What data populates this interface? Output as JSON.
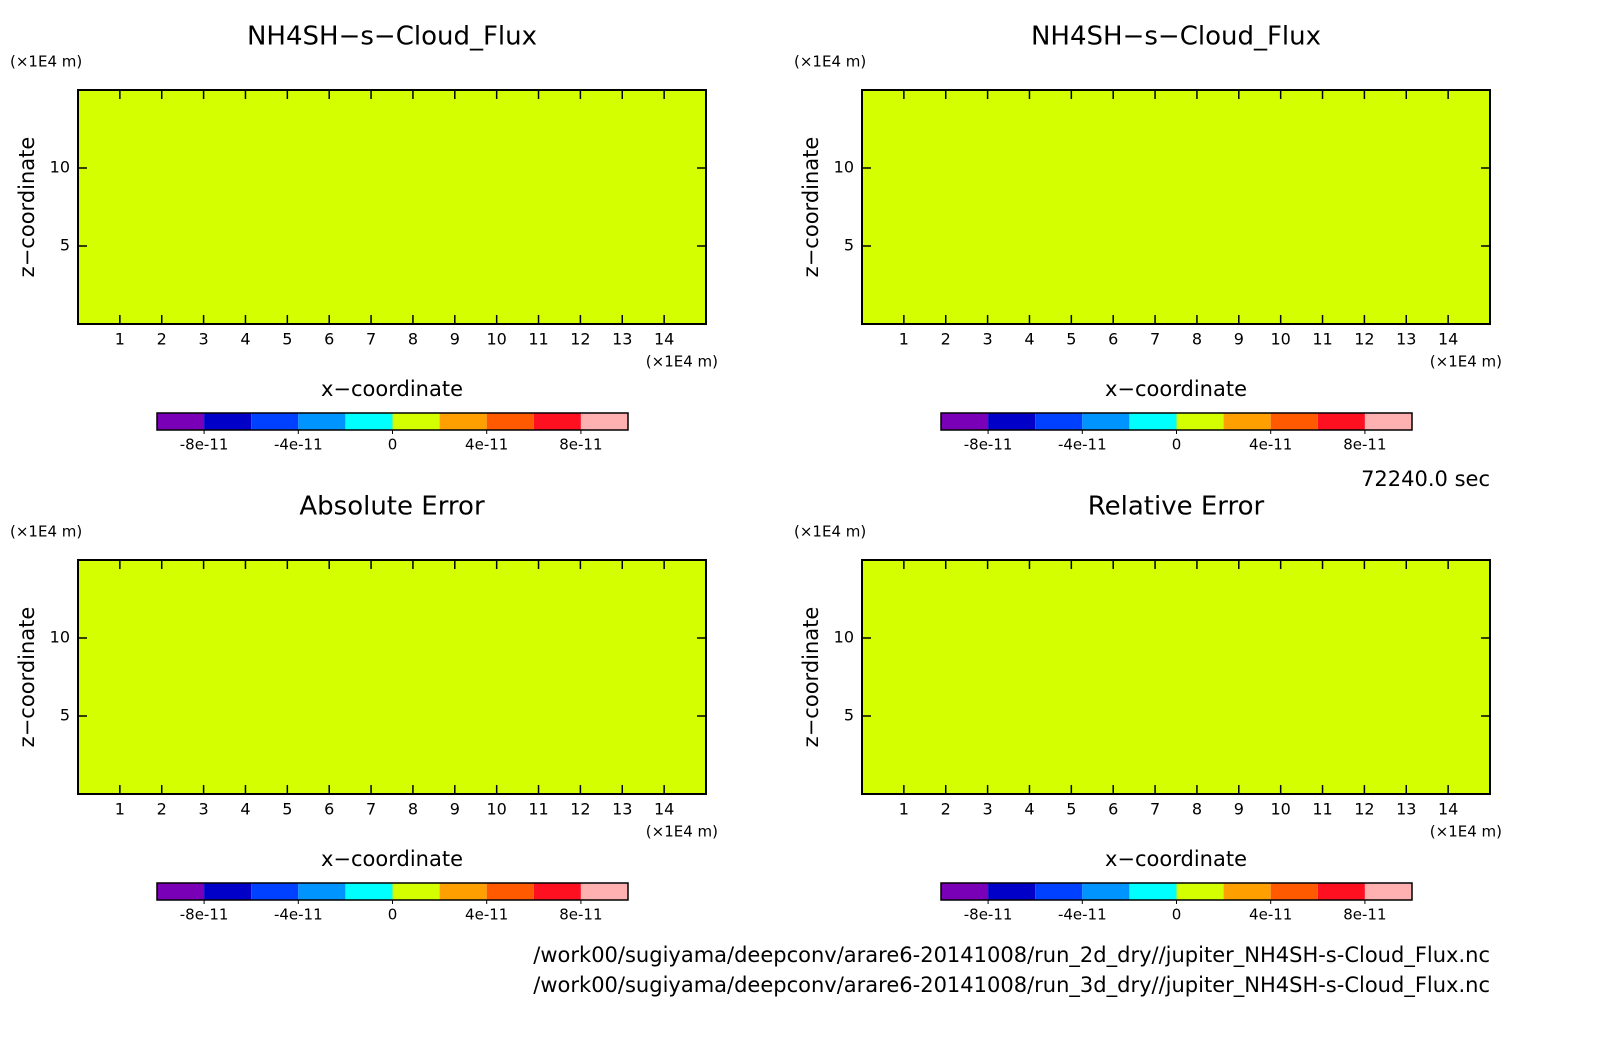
{
  "chart_data": [
    {
      "type": "heatmap",
      "title": "NH4SH−s−Cloud_Flux",
      "x_label": "x−coordinate",
      "y_label": "z−coordinate",
      "x_unit": "(×1E4 m)",
      "y_unit": "(×1E4 m)",
      "xlim": [
        0,
        15
      ],
      "ylim": [
        0,
        15
      ],
      "xticks": [
        1,
        2,
        3,
        4,
        5,
        6,
        7,
        8,
        9,
        10,
        11,
        12,
        13,
        14
      ],
      "yticks": [
        5,
        10
      ],
      "values": [
        0
      ],
      "levels": [
        -1e-10,
        -8e-11,
        -6e-11,
        -4e-11,
        -2e-11,
        0,
        2e-11,
        4e-11,
        6e-11,
        8e-11,
        1e-10
      ],
      "colors": [
        "#7a00b8",
        "#0000c8",
        "#0040ff",
        "#0094ff",
        "#00ffff",
        "#d4ff00",
        "#ffa000",
        "#ff5a00",
        "#ff1020",
        "#ffb0b0"
      ],
      "colorbar_ticks": [
        -8e-11,
        -4e-11,
        0,
        4e-11,
        8e-11
      ]
    },
    {
      "type": "heatmap",
      "title": "NH4SH−s−Cloud_Flux",
      "x_label": "x−coordinate",
      "y_label": "z−coordinate",
      "x_unit": "(×1E4 m)",
      "y_unit": "(×1E4 m)",
      "xlim": [
        0,
        15
      ],
      "ylim": [
        0,
        15
      ],
      "xticks": [
        1,
        2,
        3,
        4,
        5,
        6,
        7,
        8,
        9,
        10,
        11,
        12,
        13,
        14
      ],
      "yticks": [
        5,
        10
      ],
      "values": [
        0
      ],
      "levels": [
        -1e-10,
        -8e-11,
        -6e-11,
        -4e-11,
        -2e-11,
        0,
        2e-11,
        4e-11,
        6e-11,
        8e-11,
        1e-10
      ],
      "colors": [
        "#7a00b8",
        "#0000c8",
        "#0040ff",
        "#0094ff",
        "#00ffff",
        "#d4ff00",
        "#ffa000",
        "#ff5a00",
        "#ff1020",
        "#ffb0b0"
      ],
      "colorbar_ticks": [
        -8e-11,
        -4e-11,
        0,
        4e-11,
        8e-11
      ]
    },
    {
      "type": "heatmap",
      "title": "Absolute Error",
      "x_label": "x−coordinate",
      "y_label": "z−coordinate",
      "x_unit": "(×1E4 m)",
      "y_unit": "(×1E4 m)",
      "xlim": [
        0,
        15
      ],
      "ylim": [
        0,
        15
      ],
      "xticks": [
        1,
        2,
        3,
        4,
        5,
        6,
        7,
        8,
        9,
        10,
        11,
        12,
        13,
        14
      ],
      "yticks": [
        5,
        10
      ],
      "values": [
        0
      ],
      "levels": [
        -1e-10,
        -8e-11,
        -6e-11,
        -4e-11,
        -2e-11,
        0,
        2e-11,
        4e-11,
        6e-11,
        8e-11,
        1e-10
      ],
      "colors": [
        "#7a00b8",
        "#0000c8",
        "#0040ff",
        "#0094ff",
        "#00ffff",
        "#d4ff00",
        "#ffa000",
        "#ff5a00",
        "#ff1020",
        "#ffb0b0"
      ],
      "colorbar_ticks": [
        -8e-11,
        -4e-11,
        0,
        4e-11,
        8e-11
      ]
    },
    {
      "type": "heatmap",
      "title": "Relative Error",
      "x_label": "x−coordinate",
      "y_label": "z−coordinate",
      "x_unit": "(×1E4 m)",
      "y_unit": "(×1E4 m)",
      "xlim": [
        0,
        15
      ],
      "ylim": [
        0,
        15
      ],
      "xticks": [
        1,
        2,
        3,
        4,
        5,
        6,
        7,
        8,
        9,
        10,
        11,
        12,
        13,
        14
      ],
      "yticks": [
        5,
        10
      ],
      "values": [
        0
      ],
      "levels": [
        -1e-10,
        -8e-11,
        -6e-11,
        -4e-11,
        -2e-11,
        0,
        2e-11,
        4e-11,
        6e-11,
        8e-11,
        1e-10
      ],
      "colors": [
        "#7a00b8",
        "#0000c8",
        "#0040ff",
        "#0094ff",
        "#00ffff",
        "#d4ff00",
        "#ffa000",
        "#ff5a00",
        "#ff1020",
        "#ffb0b0"
      ],
      "colorbar_ticks": [
        -8e-11,
        -4e-11,
        0,
        4e-11,
        8e-11
      ]
    }
  ],
  "annotations": {
    "time": "72240.0 sec",
    "files": [
      "/work00/sugiyama/deepconv/arare6-20141008/run_2d_dry//jupiter_NH4SH-s-Cloud_Flux.nc",
      "/work00/sugiyama/deepconv/arare6-20141008/run_3d_dry//jupiter_NH4SH-s-Cloud_Flux.nc"
    ]
  }
}
